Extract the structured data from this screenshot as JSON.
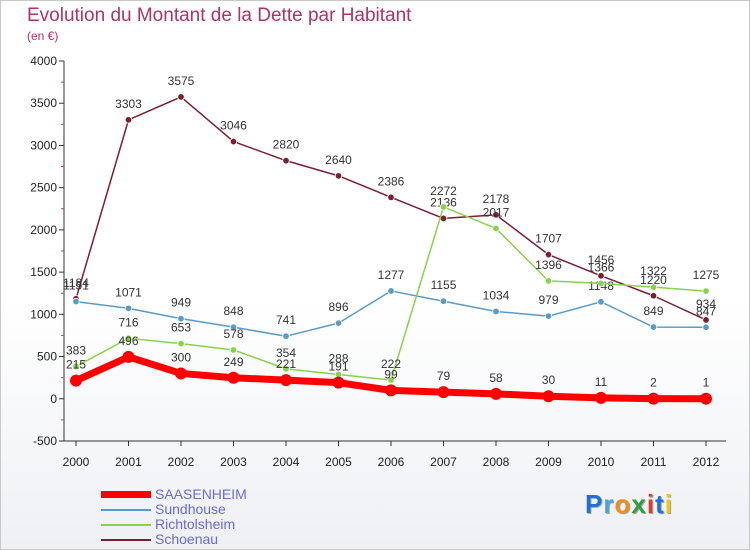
{
  "chart_data": {
    "type": "line",
    "title": "Evolution du Montant de la Dette par Habitant",
    "subtitle": "(en €)",
    "xlabel": "",
    "ylabel": "",
    "ylim": [
      -500,
      4000
    ],
    "yticks": [
      -500,
      0,
      500,
      1000,
      1500,
      2000,
      2500,
      3000,
      3500,
      4000
    ],
    "x": [
      "2000",
      "2001",
      "2002",
      "2003",
      "2004",
      "2005",
      "2006",
      "2007",
      "2008",
      "2009",
      "2010",
      "2011",
      "2012"
    ],
    "grid": false,
    "legend_position": "bottom-left",
    "series": [
      {
        "name": "Schoenau",
        "color": "#7a1f2e",
        "values": [
          1184,
          3303,
          3575,
          3046,
          2820,
          2640,
          2386,
          2136,
          2178,
          1707,
          1456,
          1220,
          934
        ]
      },
      {
        "name": "Sundhouse",
        "color": "#5a9ac8",
        "values": [
          1151,
          1071,
          949,
          848,
          741,
          896,
          1277,
          1155,
          1034,
          979,
          1148,
          849,
          847
        ]
      },
      {
        "name": "Richtolsheim",
        "color": "#88d24a",
        "values": [
          383,
          716,
          653,
          578,
          354,
          288,
          222,
          2272,
          2017,
          1396,
          1366,
          1322,
          1275
        ]
      },
      {
        "name": "SAASENHEIM",
        "color": "#ff0000",
        "values": [
          215,
          496,
          300,
          249,
          221,
          191,
          99,
          79,
          58,
          30,
          11,
          2,
          1
        ]
      }
    ]
  },
  "legend": {
    "items": [
      {
        "label": "SAASENHEIM",
        "color": "#ff0000"
      },
      {
        "label": "Sundhouse",
        "color": "#5a9ac8"
      },
      {
        "label": "Richtolsheim",
        "color": "#88d24a"
      },
      {
        "label": "Schoenau",
        "color": "#7a1f2e"
      }
    ]
  },
  "logo": {
    "letters": [
      "P",
      "r",
      "o",
      "x",
      "i",
      "t",
      "i"
    ],
    "colors": [
      "#1e6fd9",
      "#4fa0e0",
      "#f28c18",
      "#2e9e3a",
      "#e03a2a",
      "#1e6fd9",
      "#f2c418"
    ]
  }
}
